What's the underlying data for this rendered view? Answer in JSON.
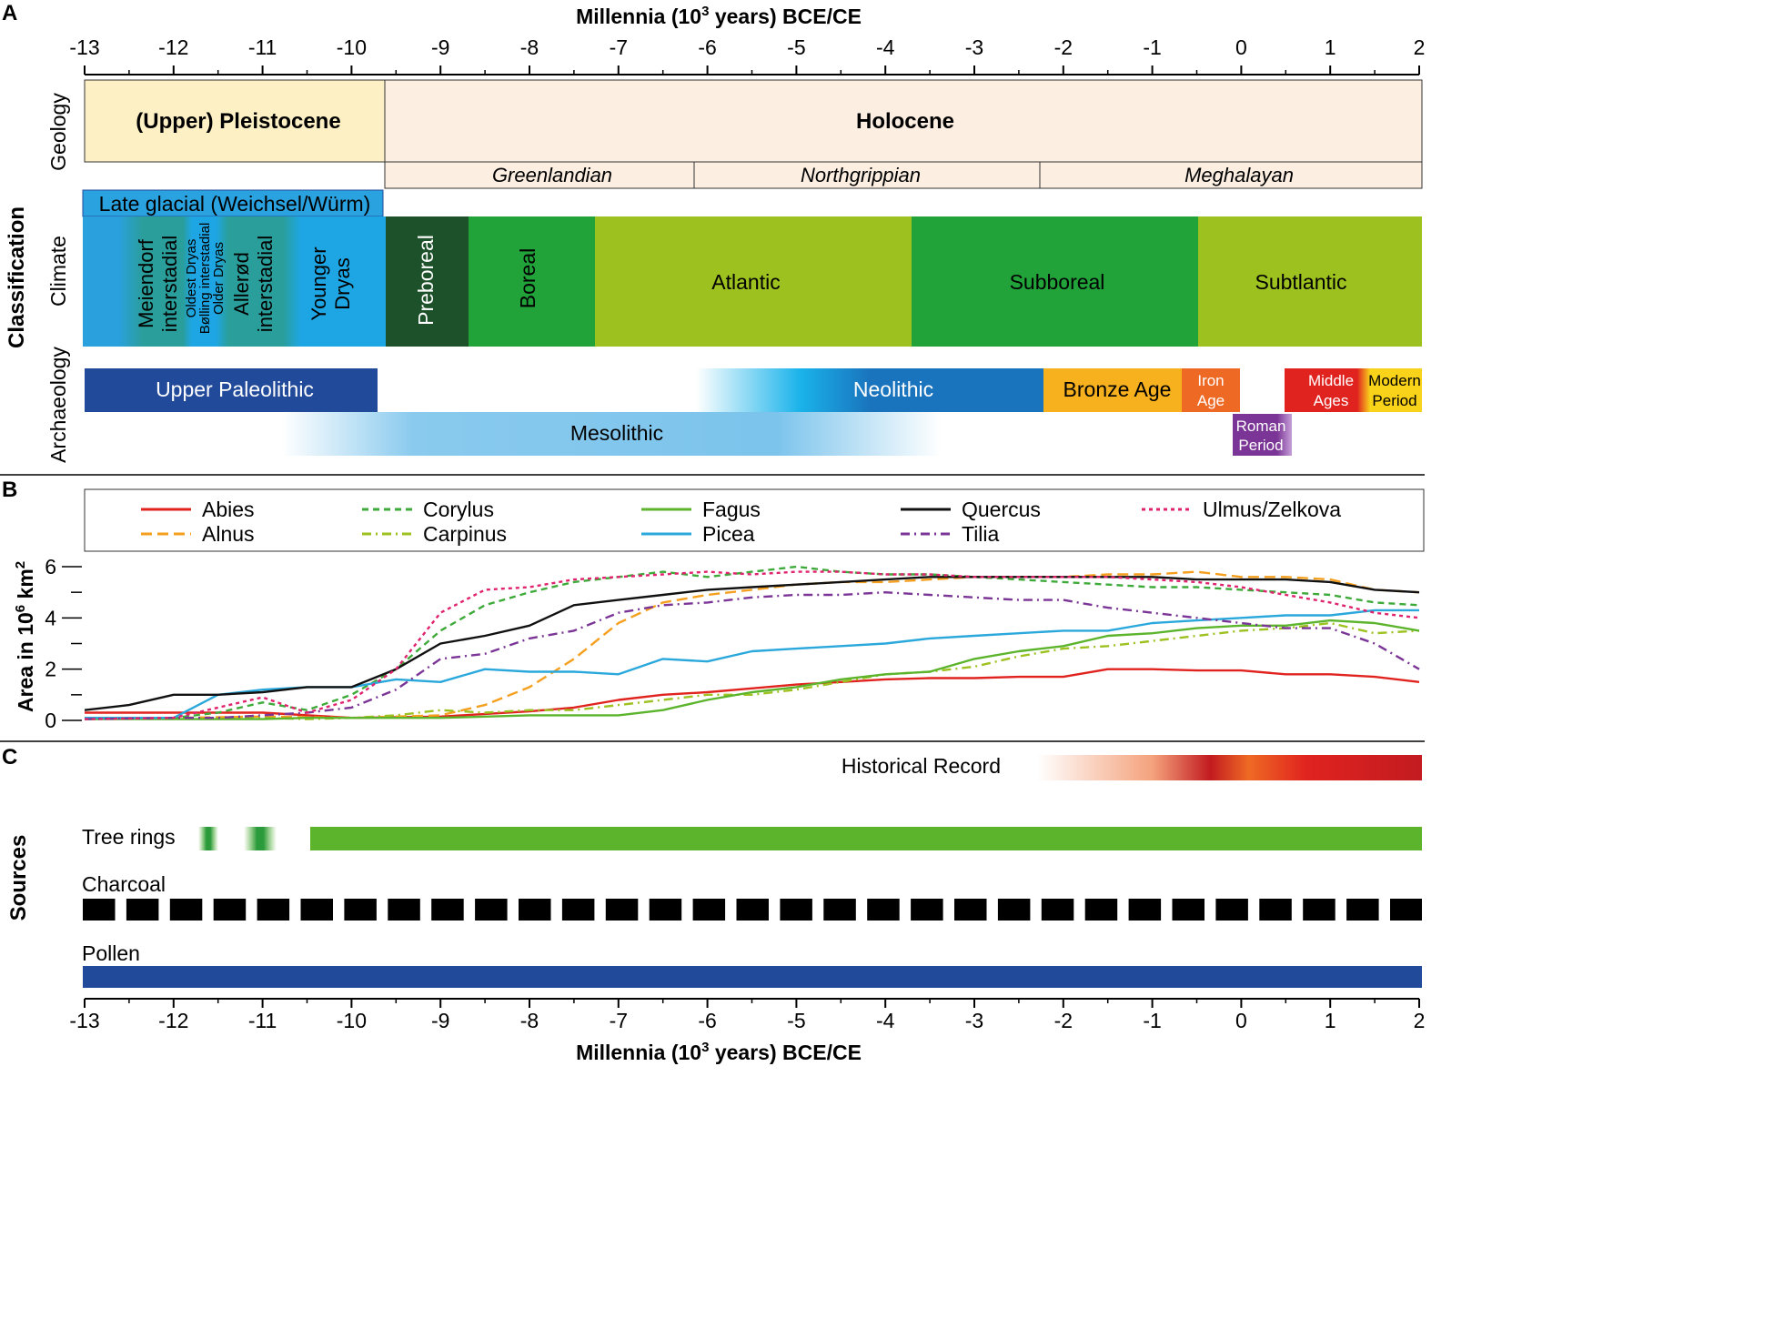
{
  "colors": {
    "pleistocene": "#fdf0c4",
    "holocene": "#fcefe2",
    "lateglacial": "#2aa2e0",
    "glacialBlue": "#2aa0dc",
    "glacialTeal": "#2a9e9a",
    "preboreal": "#1c5129",
    "boreal": "#21a33a",
    "atlantic": "#9dc11f",
    "subboreal": "#21a33a",
    "subatlantic": "#9dc11f",
    "paleolithic": "#224a9a",
    "mesolithic": "#7cc4ec",
    "neolithic": "#1a74bd",
    "neolithicLight": "#1ab3ea",
    "bronze": "#f7b11e",
    "iron": "#ee6a24",
    "roman": "#7b3596",
    "middle": "#e0231f",
    "modern": "#f9d21a",
    "treerings": "#5cb42c",
    "treeringsDark": "#2a9a3a",
    "charcoal": "#000000",
    "pollen": "#224a9a",
    "historic": "#c21b20",
    "historicOrange": "#ee6a24"
  },
  "labels": {
    "panelA": "A",
    "panelB": "B",
    "panelC": "C",
    "axisTitleTop": "Millennia (10",
    "axisTitleTopSup": "3",
    "axisTitleTopEnd": " years) BCE/CE",
    "axisTitleBottom": "Millennia (10",
    "axisTitleBottomSup": "3",
    "axisTitleBottomEnd": " years) BCE/CE",
    "classification": "Classification",
    "geology": "Geology",
    "climate": "Climate",
    "archaeology": "Archaeology",
    "sources": "Sources",
    "yAxis": "Area in 10",
    "yAxisSup": "6",
    "yAxisEnd": " km",
    "yAxisSup2": "2"
  },
  "geology": {
    "pleistocene": "(Upper) Pleistocene",
    "holocene": "Holocene",
    "greenlandian": "Greenlandian",
    "northgrippian": "Northgrippian",
    "meghalayan": "Meghalayan"
  },
  "climate": {
    "lateGlacial": "Late glacial (Weichsel/Würm)",
    "meiendorf1": "Meiendorf",
    "meiendorf2": "interstadial",
    "oldestDryas": "Oldest Dryas",
    "bolling": "Bølling interstadial",
    "olderDryas": "Older Dryas",
    "allerod1": "Allerød",
    "allerod2": "interstadial",
    "younger1": "Younger",
    "younger2": "Dryas",
    "preboreal": "Preboreal",
    "boreal": "Boreal",
    "atlantic": "Atlantic",
    "subboreal": "Subboreal",
    "subatlantic": "Subtlantic"
  },
  "archaeology": {
    "upperPaleolithic": "Upper Paleolithic",
    "mesolithic": "Mesolithic",
    "neolithic": "Neolithic",
    "bronze": "Bronze Age",
    "iron1": "Iron",
    "iron2": "Age",
    "roman1": "Roman",
    "roman2": "Period",
    "middle1": "Middle",
    "middle2": "Ages",
    "modern1": "Modern",
    "modern2": "Period"
  },
  "sources": {
    "historical": "Historical Record",
    "treeRings": "Tree rings",
    "charcoal": "Charcoal",
    "pollen": "Pollen"
  },
  "chart_data": {
    "type": "line",
    "xlabel": "Millennia (10^3 years) BCE/CE",
    "ylabel": "Area in 10^6 km^2",
    "xlim": [
      -13,
      2
    ],
    "ylim": [
      0,
      6
    ],
    "xticks": [
      -13,
      -12,
      -11,
      -10,
      -9,
      -8,
      -7,
      -6,
      -5,
      -4,
      -3,
      -2,
      -1,
      0,
      1,
      2
    ],
    "yticks": [
      0,
      2,
      4,
      6
    ],
    "legend_position": "top",
    "series": [
      {
        "name": "Abies",
        "color": "#e0231f",
        "dash": "solid",
        "x": [
          -13,
          -12,
          -11,
          -10,
          -9,
          -8,
          -7.5,
          -7,
          -6.5,
          -6,
          -5.5,
          -5,
          -4.5,
          -4,
          -3.5,
          -3,
          -2.5,
          -2,
          -1.5,
          -1,
          -0.5,
          0,
          0.5,
          1,
          1.5,
          2
        ],
        "y": [
          0.3,
          0.3,
          0.3,
          0.1,
          0.15,
          0.35,
          0.5,
          0.8,
          1.0,
          1.1,
          1.25,
          1.4,
          1.5,
          1.6,
          1.65,
          1.65,
          1.7,
          1.7,
          2.0,
          2.0,
          1.95,
          1.95,
          1.8,
          1.8,
          1.7,
          1.5
        ]
      },
      {
        "name": "Alnus",
        "color": "#f59f1e",
        "dash": "longdash",
        "x": [
          -13,
          -12,
          -11,
          -10,
          -9,
          -8.5,
          -8,
          -7.5,
          -7,
          -6.5,
          -6,
          -5.5,
          -5,
          -4.5,
          -4,
          -3.5,
          -3,
          -2.5,
          -2,
          -1.5,
          -1,
          -0.5,
          0,
          0.5,
          1,
          1.5,
          2
        ],
        "y": [
          0.05,
          0.1,
          0.15,
          0.1,
          0.2,
          0.6,
          1.3,
          2.4,
          3.8,
          4.6,
          4.9,
          5.1,
          5.3,
          5.4,
          5.4,
          5.5,
          5.6,
          5.6,
          5.6,
          5.7,
          5.7,
          5.8,
          5.6,
          5.6,
          5.5,
          5.1,
          5.0
        ]
      },
      {
        "name": "Corylus",
        "color": "#3eaa3a",
        "dash": "dashed",
        "x": [
          -13,
          -12,
          -11.5,
          -11,
          -10.5,
          -10,
          -9.5,
          -9,
          -8.5,
          -8,
          -7.5,
          -7,
          -6.5,
          -6,
          -5.5,
          -5,
          -4.5,
          -4,
          -3.5,
          -3,
          -2.5,
          -2,
          -1.5,
          -1,
          -0.5,
          0,
          0.5,
          1,
          1.5,
          2
        ],
        "y": [
          0.05,
          0.1,
          0.3,
          0.7,
          0.4,
          1.0,
          2.0,
          3.5,
          4.5,
          5.0,
          5.4,
          5.6,
          5.8,
          5.6,
          5.8,
          6.0,
          5.8,
          5.7,
          5.7,
          5.6,
          5.5,
          5.4,
          5.3,
          5.2,
          5.2,
          5.1,
          5.0,
          4.9,
          4.6,
          4.5
        ]
      },
      {
        "name": "Carpinus",
        "color": "#9dc11f",
        "dash": "dashdot",
        "x": [
          -13,
          -12,
          -11,
          -10.5,
          -10,
          -9.5,
          -9,
          -8.5,
          -8,
          -7.5,
          -7,
          -6.5,
          -6,
          -5.5,
          -5,
          -4.5,
          -4,
          -3.5,
          -3,
          -2.5,
          -2,
          -1.5,
          -1,
          -0.5,
          0,
          0.5,
          1,
          1.5,
          2
        ],
        "y": [
          0.1,
          0.1,
          0.1,
          0.05,
          0.1,
          0.2,
          0.4,
          0.3,
          0.4,
          0.4,
          0.6,
          0.8,
          1.0,
          1.0,
          1.2,
          1.5,
          1.8,
          1.9,
          2.1,
          2.5,
          2.8,
          2.9,
          3.1,
          3.3,
          3.5,
          3.6,
          3.8,
          3.4,
          3.5
        ]
      },
      {
        "name": "Fagus",
        "color": "#5cb42c",
        "dash": "solid",
        "x": [
          -13,
          -12,
          -11,
          -10.5,
          -10,
          -9,
          -8,
          -7,
          -6.5,
          -6,
          -5.5,
          -5,
          -4.5,
          -4,
          -3.5,
          -3,
          -2.5,
          -2,
          -1.5,
          -1,
          -0.5,
          0,
          0.5,
          1,
          1.5,
          2
        ],
        "y": [
          0.05,
          0.05,
          0.05,
          0.1,
          0.1,
          0.1,
          0.2,
          0.2,
          0.4,
          0.8,
          1.1,
          1.3,
          1.6,
          1.8,
          1.9,
          2.4,
          2.7,
          2.9,
          3.3,
          3.4,
          3.6,
          3.7,
          3.7,
          3.9,
          3.8,
          3.5
        ]
      },
      {
        "name": "Picea",
        "color": "#2aa8dc",
        "dash": "solid",
        "x": [
          -13,
          -12,
          -11.5,
          -11,
          -10.5,
          -10,
          -9.5,
          -9,
          -8.5,
          -8,
          -7.5,
          -7,
          -6.5,
          -6,
          -5.5,
          -5,
          -4.5,
          -4,
          -3.5,
          -3,
          -2.5,
          -2,
          -1.5,
          -1,
          -0.5,
          0,
          0.5,
          1,
          1.5,
          2
        ],
        "y": [
          0.1,
          0.1,
          1.0,
          1.2,
          1.3,
          1.3,
          1.6,
          1.5,
          2.0,
          1.9,
          1.9,
          1.8,
          2.4,
          2.3,
          2.7,
          2.8,
          2.9,
          3.0,
          3.2,
          3.3,
          3.4,
          3.5,
          3.5,
          3.8,
          3.9,
          4.0,
          4.1,
          4.1,
          4.3,
          4.3
        ]
      },
      {
        "name": "Quercus",
        "color": "#111111",
        "dash": "solid",
        "x": [
          -13,
          -12.5,
          -12,
          -11.5,
          -11,
          -10.5,
          -10,
          -9.5,
          -9,
          -8.5,
          -8,
          -7.5,
          -7,
          -6.5,
          -6,
          -5.5,
          -5,
          -4.5,
          -4,
          -3.5,
          -3,
          -2.5,
          -2,
          -1.5,
          -1,
          -0.5,
          0,
          0.5,
          1,
          1.5,
          2
        ],
        "y": [
          0.4,
          0.6,
          1.0,
          1.0,
          1.1,
          1.3,
          1.3,
          2.0,
          3.0,
          3.3,
          3.7,
          4.5,
          4.7,
          4.9,
          5.1,
          5.2,
          5.3,
          5.4,
          5.5,
          5.6,
          5.6,
          5.6,
          5.6,
          5.6,
          5.6,
          5.5,
          5.5,
          5.5,
          5.4,
          5.1,
          5.0
        ]
      },
      {
        "name": "Tilia",
        "color": "#7b3596",
        "dash": "dashdot",
        "x": [
          -13,
          -12,
          -11.5,
          -11,
          -10.5,
          -10,
          -9.5,
          -9,
          -8.5,
          -8,
          -7.5,
          -7,
          -6.5,
          -6,
          -5.5,
          -5,
          -4.5,
          -4,
          -3.5,
          -3,
          -2.5,
          -2,
          -1.5,
          -1,
          -0.5,
          0,
          0.5,
          1,
          1.5,
          2
        ],
        "y": [
          0.05,
          0.1,
          0.1,
          0.2,
          0.3,
          0.5,
          1.2,
          2.4,
          2.6,
          3.2,
          3.5,
          4.2,
          4.5,
          4.6,
          4.8,
          4.9,
          4.9,
          5.0,
          4.9,
          4.8,
          4.7,
          4.7,
          4.4,
          4.2,
          4.0,
          3.8,
          3.6,
          3.6,
          3.0,
          2.0
        ]
      },
      {
        "name": "Ulmus/Zelkova",
        "color": "#e0236e",
        "dash": "dotted",
        "x": [
          -13,
          -12,
          -11.5,
          -11,
          -10.5,
          -10,
          -9.5,
          -9,
          -8.5,
          -8,
          -7.5,
          -7,
          -6.5,
          -6,
          -5.5,
          -5,
          -4.5,
          -4,
          -3.5,
          -3,
          -2.5,
          -2,
          -1.5,
          -1,
          -0.5,
          0,
          0.5,
          1,
          1.5,
          2
        ],
        "y": [
          0.05,
          0.1,
          0.5,
          0.9,
          0.3,
          0.8,
          2.0,
          4.2,
          5.1,
          5.2,
          5.5,
          5.6,
          5.7,
          5.8,
          5.7,
          5.8,
          5.8,
          5.7,
          5.7,
          5.6,
          5.6,
          5.6,
          5.6,
          5.5,
          5.4,
          5.2,
          4.9,
          4.6,
          4.2,
          4.0
        ]
      }
    ]
  }
}
